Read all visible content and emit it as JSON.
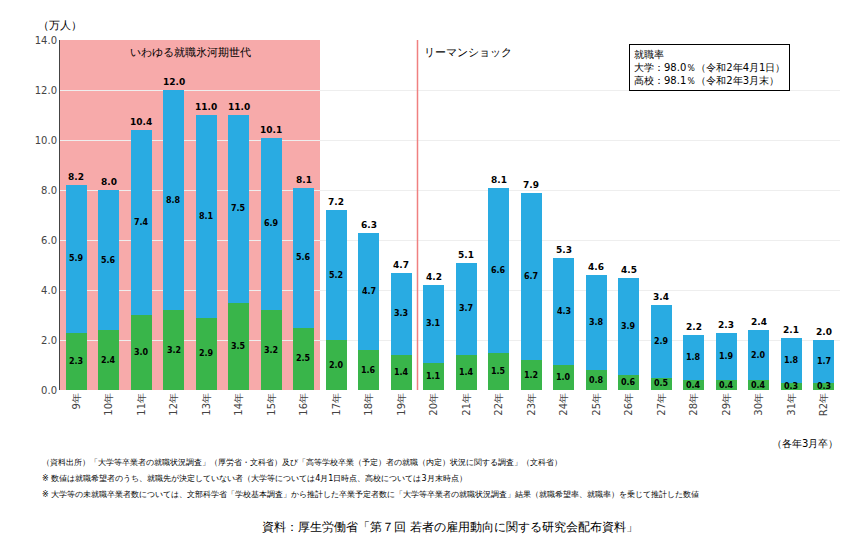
{
  "chart_data": {
    "type": "bar",
    "stacked": true,
    "data_labels": true,
    "grid": true,
    "ylabel": "（万人）",
    "categories": [
      "9年",
      "10年",
      "11年",
      "12年",
      "13年",
      "14年",
      "15年",
      "16年",
      "17年",
      "18年",
      "19年",
      "20年",
      "21年",
      "22年",
      "23年",
      "24年",
      "25年",
      "26年",
      "27年",
      "28年",
      "29年",
      "30年",
      "31年",
      "R2年"
    ],
    "series": [
      {
        "color": "#39B54A",
        "values": [
          2.3,
          2.4,
          3.0,
          3.2,
          2.9,
          3.5,
          3.2,
          2.5,
          2.0,
          1.6,
          1.4,
          1.1,
          1.4,
          1.5,
          1.2,
          1.0,
          0.8,
          0.6,
          0.5,
          0.4,
          0.4,
          0.4,
          0.3,
          0.3
        ],
        "value_labels": [
          "2.3",
          "2.4",
          "3.0",
          "3.2",
          "2.9",
          "3.5",
          "3.2",
          "2.5",
          "2.0",
          "1.6",
          "1.4",
          "1.1",
          "1.4",
          "1.5",
          "1.2",
          "1.0",
          "0.8",
          "0.6",
          "0.5",
          "0.4",
          "0.4",
          "0.4",
          "0.3",
          "0.3"
        ]
      },
      {
        "color": "#29ABE2",
        "values": [
          5.9,
          5.6,
          7.4,
          8.8,
          8.1,
          7.5,
          6.9,
          5.6,
          5.2,
          4.7,
          3.3,
          3.1,
          3.7,
          6.6,
          6.7,
          4.3,
          3.8,
          3.9,
          2.9,
          1.8,
          1.9,
          2.0,
          1.8,
          1.7
        ],
        "value_labels": [
          "5.9",
          "5.6",
          "7.4",
          "8.8",
          "8.1",
          "7.5",
          "6.9",
          "5.6",
          "5.2",
          "4.7",
          "3.3",
          "3.1",
          "3.7",
          "6.6",
          "6.7",
          "4.3",
          "3.8",
          "3.9",
          "2.9",
          "1.8",
          "1.9",
          "2.0",
          "1.8",
          "1.7"
        ]
      }
    ],
    "totals": [
      8.2,
      8.0,
      10.4,
      12.0,
      11.0,
      11.0,
      10.1,
      8.1,
      7.2,
      6.3,
      4.7,
      4.2,
      5.1,
      8.1,
      7.9,
      5.3,
      4.6,
      4.5,
      3.4,
      2.2,
      2.3,
      2.4,
      2.1,
      2.0
    ],
    "total_labels": [
      "8.2",
      "8.0",
      "10.4",
      "12.0",
      "11.0",
      "11.0",
      "10.1",
      "8.1",
      "7.2",
      "6.3",
      "4.7",
      "4.2",
      "5.1",
      "8.1",
      "7.9",
      "5.3",
      "4.6",
      "4.5",
      "3.4",
      "2.2",
      "2.3",
      "2.4",
      "2.1",
      "2.0"
    ],
    "ylim": [
      0,
      14.0
    ],
    "yticks": [
      {
        "value": 0.0,
        "label": "0.0"
      },
      {
        "value": 2.0,
        "label": "2.0"
      },
      {
        "value": 4.0,
        "label": "4.0"
      },
      {
        "value": 6.0,
        "label": "6.0"
      },
      {
        "value": 8.0,
        "label": "8.0"
      },
      {
        "value": 10.0,
        "label": "10.0"
      },
      {
        "value": 12.0,
        "label": "12.0"
      },
      {
        "value": 14.0,
        "label": "14.0"
      }
    ],
    "annotations": [
      {
        "text": "いわゆる就職氷河期世代",
        "span": [
          "9年",
          "16年"
        ],
        "color": "#F7AAAA"
      },
      {
        "text": "リーマンショック",
        "line_between": [
          "19年",
          "20年"
        ],
        "color": "#F08080"
      },
      {
        "text": "（各年3月卒）"
      }
    ],
    "box": {
      "title": "就職率",
      "lines": [
        "大学：98.0％（令和2年4月1日）",
        "高校：98.1％（令和2年3月末）"
      ]
    },
    "notes": [
      "（資料出所）「大学等卒業者の就職状況調査」（厚労省・文科省）及び「高等学校卒業（予定）者の就職（内定）状況に関する調査」（文科省）",
      "※ 数値は就職希望者のうち、就職先が決定していない者（大学等については4月1日時点、高校については3月末時点）",
      "※ 大学等の未就職卒業者数については、文部科学省「学校基本調査」から推計した卒業予定者数に「大学等卒業者の就職状況調査」結果（就職希望率、就職率）を乗じて推計した数値"
    ],
    "source": "資料：厚生労働省「第７回 若者の雇用動向に関する研究会配布資料」"
  }
}
